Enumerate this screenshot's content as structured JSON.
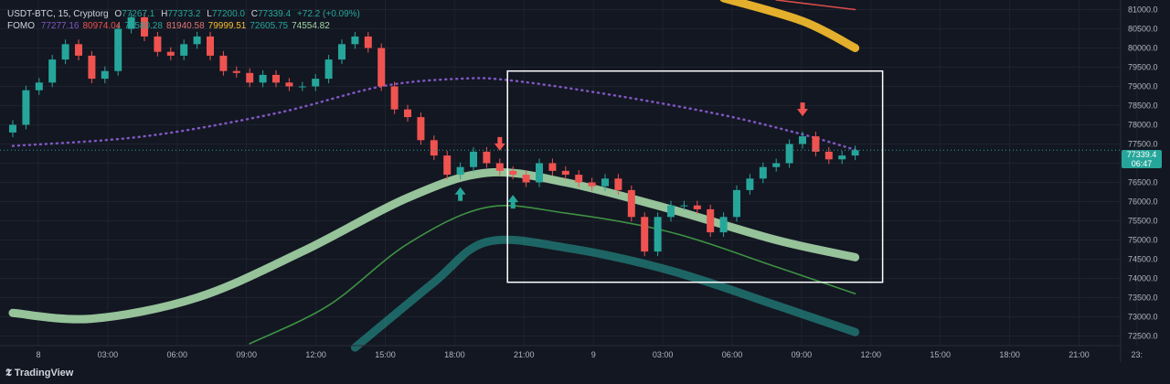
{
  "legend": {
    "symbol": "USDT-BTC, 15, Cryptorg",
    "o_label": "O",
    "o_value": "77267.1",
    "h_label": "H",
    "h_value": "77373.2",
    "l_label": "L",
    "l_value": "77200.0",
    "c_label": "C",
    "c_value": "77339.4",
    "change": "+72.2 (+0.09%)",
    "indicator": "FOMO",
    "ind_values": [
      {
        "value": "77277.16",
        "color": "#7e57c2"
      },
      {
        "value": "80974.04",
        "color": "#ef5350"
      },
      {
        "value": "73580.28",
        "color": "#26a69a"
      },
      {
        "value": "81940.58",
        "color": "#e57373"
      },
      {
        "value": "79999.51",
        "color": "#fbc02d"
      },
      {
        "value": "72605.75",
        "color": "#26a69a"
      },
      {
        "value": "74554.82",
        "color": "#a5d6a7"
      }
    ]
  },
  "price_tag": {
    "price": "77339.4",
    "countdown": "06:47"
  },
  "branding": {
    "name": "TradingView"
  },
  "colors": {
    "up": "#26a69a",
    "down": "#ef5350",
    "bg": "#131722",
    "grid": "#1e222d",
    "text": "#b2b5be"
  },
  "chart_data": {
    "type": "candlestick",
    "ylim": [
      72250,
      81250
    ],
    "y_ticks": [
      81000,
      80500,
      80000,
      79500,
      79000,
      78500,
      78000,
      77500,
      77000,
      76500,
      76000,
      75500,
      75000,
      74500,
      74000,
      73500,
      73000,
      72500
    ],
    "y_tick_labels": [
      "81000.0",
      "80500.0",
      "80000.0",
      "79500.0",
      "79000.0",
      "78500.0",
      "78000.0",
      "77500.0",
      "77000.0",
      "76500.0",
      "76000.0",
      "75500.0",
      "75000.0",
      "74500.0",
      "74000.0",
      "73500.0",
      "73000.0",
      "72500.0"
    ],
    "x_ticks": [
      "8",
      "03:00",
      "06:00",
      "09:00",
      "12:00",
      "15:00",
      "18:00",
      "21:00",
      "9",
      "03:00",
      "06:00",
      "09:00",
      "12:00",
      "15:00",
      "18:00",
      "21:00",
      "23:"
    ],
    "x_tick_hours": [
      0,
      3,
      6,
      9,
      12,
      15,
      18,
      21,
      24,
      27,
      30,
      33,
      36,
      39,
      42,
      45,
      47.5
    ],
    "last_price": 77339.4,
    "close_series": [
      [
        0,
        78000
      ],
      [
        1,
        78900
      ],
      [
        2,
        79100
      ],
      [
        3,
        79700
      ],
      [
        4,
        80100
      ],
      [
        5,
        79800
      ],
      [
        6,
        79200
      ],
      [
        7,
        79400
      ],
      [
        8,
        80500
      ],
      [
        9,
        80800
      ],
      [
        10,
        80300
      ],
      [
        11,
        79900
      ],
      [
        12,
        79800
      ],
      [
        13,
        80100
      ],
      [
        14,
        80300
      ],
      [
        15,
        79800
      ],
      [
        16,
        79400
      ],
      [
        17,
        79350
      ],
      [
        18,
        79100
      ],
      [
        19,
        79300
      ],
      [
        20,
        79100
      ],
      [
        21,
        79000
      ],
      [
        22,
        79000
      ],
      [
        23,
        79200
      ],
      [
        24,
        79700
      ],
      [
        25,
        80100
      ],
      [
        26,
        80300
      ],
      [
        27,
        80000
      ],
      [
        28,
        79000
      ],
      [
        29,
        78400
      ],
      [
        30,
        78200
      ],
      [
        31,
        77600
      ],
      [
        32,
        77200
      ],
      [
        33,
        76700
      ],
      [
        34,
        76900
      ],
      [
        35,
        77300
      ],
      [
        36,
        77000
      ],
      [
        37,
        76800
      ],
      [
        38,
        76700
      ],
      [
        39,
        76500
      ],
      [
        40,
        77000
      ],
      [
        41,
        76800
      ],
      [
        42,
        76700
      ],
      [
        43,
        76500
      ],
      [
        44,
        76400
      ],
      [
        45,
        76600
      ],
      [
        46,
        76300
      ],
      [
        47,
        75600
      ],
      [
        48,
        74700
      ],
      [
        49,
        75600
      ],
      [
        50,
        75900
      ],
      [
        51,
        75900
      ],
      [
        52,
        75800
      ],
      [
        53,
        75200
      ],
      [
        54,
        75600
      ],
      [
        55,
        76300
      ],
      [
        56,
        76600
      ],
      [
        57,
        76900
      ],
      [
        58,
        77000
      ],
      [
        59,
        77500
      ],
      [
        60,
        77700
      ],
      [
        61,
        77300
      ],
      [
        62,
        77100
      ],
      [
        63,
        77200
      ],
      [
        64,
        77339
      ]
    ],
    "signals": [
      {
        "type": "buy",
        "index": 34
      },
      {
        "type": "buy",
        "index": 38
      },
      {
        "type": "sell",
        "index": 37
      },
      {
        "type": "sell",
        "index": 60
      }
    ],
    "bands": [
      {
        "name": "",
        "color": "#7e57c2",
        "style": "dotted",
        "points": [
          [
            0,
            77450
          ],
          [
            10,
            77700
          ],
          [
            20,
            78300
          ],
          [
            28,
            79000
          ],
          [
            34,
            79200
          ],
          [
            38,
            79150
          ],
          [
            46,
            78750
          ],
          [
            54,
            78250
          ],
          [
            60,
            77750
          ],
          [
            64,
            77350
          ]
        ]
      },
      {
        "name": "",
        "color": "#a5d6a7",
        "style": "thick",
        "points": [
          [
            0,
            73100
          ],
          [
            6,
            72950
          ],
          [
            14,
            73500
          ],
          [
            22,
            74700
          ],
          [
            30,
            76100
          ],
          [
            36,
            76750
          ],
          [
            42,
            76500
          ],
          [
            50,
            75800
          ],
          [
            58,
            75000
          ],
          [
            64,
            74550
          ]
        ]
      },
      {
        "name": "",
        "color": "#43a047",
        "style": "thin",
        "points": [
          [
            18,
            72300
          ],
          [
            24,
            73300
          ],
          [
            30,
            74900
          ],
          [
            36,
            75850
          ],
          [
            42,
            75700
          ],
          [
            50,
            75200
          ],
          [
            58,
            74300
          ],
          [
            64,
            73600
          ]
        ]
      },
      {
        "name": "",
        "color": "#26a69a",
        "style": "thick",
        "points": [
          [
            26,
            72200
          ],
          [
            32,
            73900
          ],
          [
            36,
            74950
          ],
          [
            42,
            74800
          ],
          [
            50,
            74200
          ],
          [
            58,
            73300
          ],
          [
            64,
            72600
          ]
        ]
      },
      {
        "name": "",
        "color": "#fbc02d",
        "style": "thick",
        "points": [
          [
            54,
            81300
          ],
          [
            60,
            80700
          ],
          [
            64,
            80000
          ]
        ]
      },
      {
        "name": "",
        "color": "#ef5350",
        "style": "thin",
        "points": [
          [
            58,
            81250
          ],
          [
            64,
            81000
          ]
        ]
      }
    ],
    "box": {
      "x_range": [
        38,
        64
      ],
      "y_range": [
        73900,
        79400
      ]
    }
  }
}
